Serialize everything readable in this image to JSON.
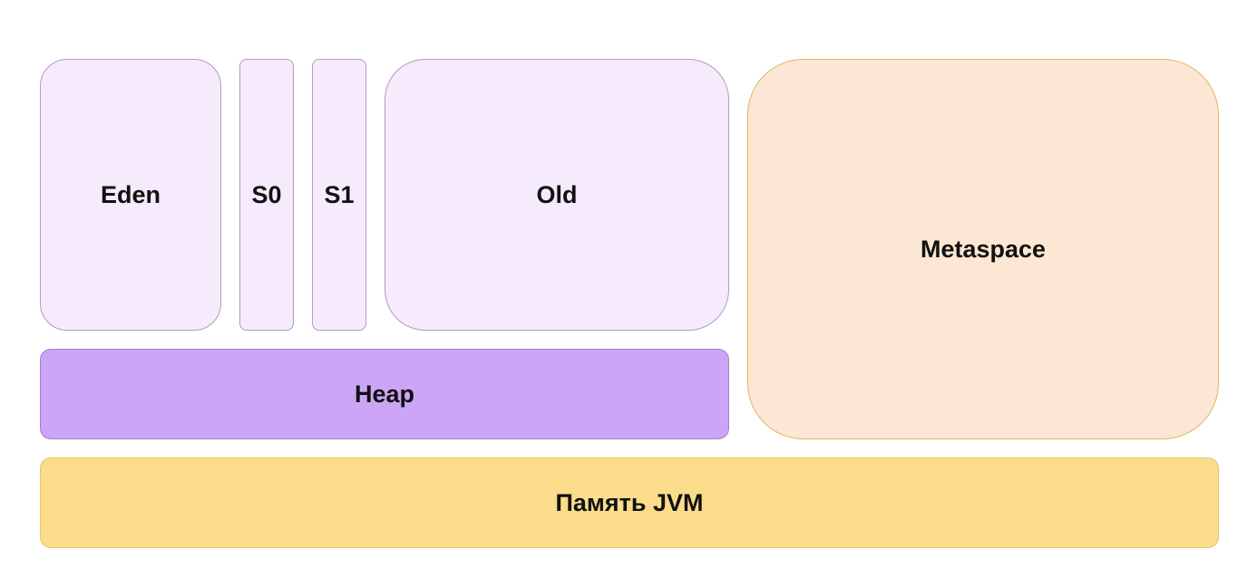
{
  "diagram": {
    "blocks": {
      "eden": "Eden",
      "s0": "S0",
      "s1": "S1",
      "old": "Old",
      "heap": "Heap",
      "metaspace": "Metaspace",
      "jvm_memory": "Память JVM"
    },
    "colors": {
      "young_fill": "#f6ebfc",
      "young_stroke": "#b39bbd",
      "heap_fill": "#cda5f6",
      "metaspace_fill": "#fce7d4",
      "metaspace_stroke": "#e0b45e",
      "jvm_fill": "#fbdc8a"
    }
  }
}
